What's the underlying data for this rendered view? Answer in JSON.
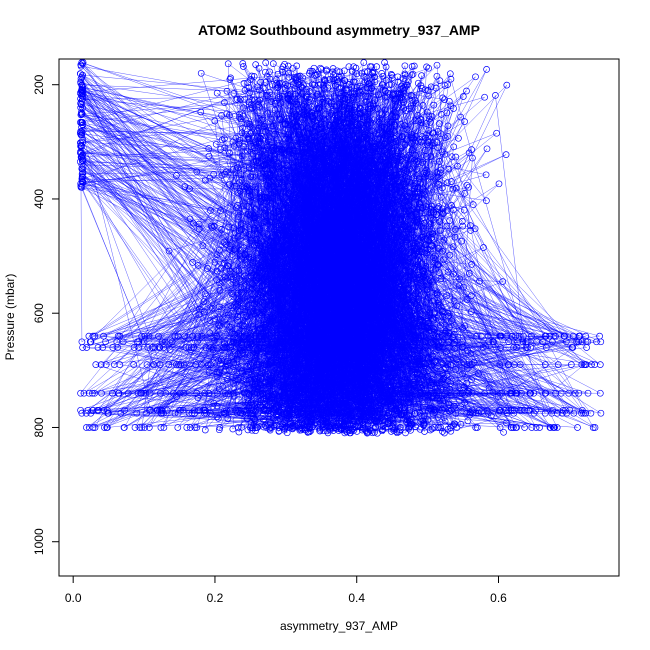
{
  "chart_data": {
    "type": "line",
    "title": "ATOM2 Southbound asymmetry_937_AMP",
    "xlabel": "asymmetry_937_AMP",
    "ylabel": "Pressure (mbar)",
    "xlim": [
      -0.02,
      0.77
    ],
    "ylim": [
      1060,
      155
    ],
    "y_reversed": true,
    "x_ticks": [
      0.0,
      0.2,
      0.4,
      0.6
    ],
    "x_tick_labels": [
      "0.0",
      "0.2",
      "0.4",
      "0.6"
    ],
    "y_ticks": [
      200,
      400,
      600,
      800,
      1000
    ],
    "y_tick_labels": [
      "200",
      "400",
      "600",
      "800",
      "1000"
    ],
    "grid": false,
    "legend": "none",
    "series": [
      {
        "color": "#0000ff",
        "marker": "open-circle",
        "line": true,
        "x_range": [
          0.01,
          0.745
        ],
        "pressure_range": [
          160,
          810
        ],
        "approx_points": 5500,
        "sample_points": [
          {
            "x": 0.01,
            "y": 160
          },
          {
            "x": 0.01,
            "y": 260
          },
          {
            "x": 0.01,
            "y": 360
          },
          {
            "x": 0.05,
            "y": 320
          },
          {
            "x": 0.15,
            "y": 180
          },
          {
            "x": 0.35,
            "y": 300
          },
          {
            "x": 0.55,
            "y": 420
          },
          {
            "x": 0.72,
            "y": 530
          },
          {
            "x": 0.01,
            "y": 650
          },
          {
            "x": 0.74,
            "y": 770
          },
          {
            "x": 0.01,
            "y": 800
          },
          {
            "x": 0.7,
            "y": 800
          }
        ]
      }
    ]
  }
}
